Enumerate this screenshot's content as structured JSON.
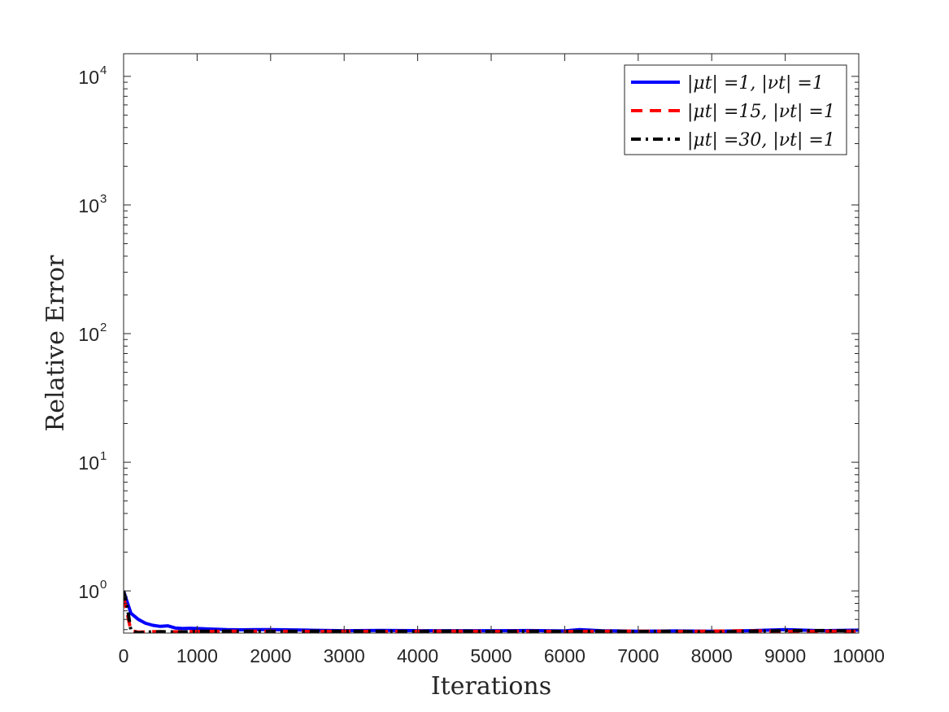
{
  "chart_data": {
    "type": "line",
    "xlabel": "Iterations",
    "ylabel": "Relative Error",
    "xlim": [
      0,
      10000
    ],
    "ylim": [
      0.47,
      15000
    ],
    "yscale": "log",
    "x_ticks": [
      "0",
      "1000",
      "2000",
      "3000",
      "4000",
      "5000",
      "6000",
      "7000",
      "8000",
      "9000",
      "10000"
    ],
    "y_ticks": [
      {
        "base": "10",
        "exp": "0",
        "value": 1
      },
      {
        "base": "10",
        "exp": "1",
        "value": 10
      },
      {
        "base": "10",
        "exp": "2",
        "value": 100
      },
      {
        "base": "10",
        "exp": "3",
        "value": 1000
      },
      {
        "base": "10",
        "exp": "4",
        "value": 10000
      }
    ],
    "grid": false,
    "legend_position": "top-right",
    "series": [
      {
        "name": "|μt| =1, |νt| =1",
        "color": "#0000ff",
        "dash": "solid",
        "x": [
          0,
          100,
          200,
          300,
          400,
          500,
          600,
          700,
          800,
          900,
          1000,
          1200,
          1400,
          1600,
          1800,
          2000,
          2500,
          3000,
          3500,
          4000,
          4500,
          5000,
          5500,
          6000,
          6200,
          6500,
          7000,
          7500,
          8000,
          8500,
          9000,
          9500,
          10000
        ],
        "y": [
          1.0,
          0.67,
          0.6,
          0.56,
          0.54,
          0.53,
          0.535,
          0.515,
          0.51,
          0.512,
          0.51,
          0.505,
          0.5,
          0.498,
          0.5,
          0.5,
          0.495,
          0.49,
          0.493,
          0.49,
          0.49,
          0.49,
          0.492,
          0.488,
          0.5,
          0.49,
          0.486,
          0.488,
          0.485,
          0.49,
          0.5,
          0.49,
          0.495
        ]
      },
      {
        "name": "|μt| =15, |νt| =1",
        "color": "#ff0000",
        "dash": "dashed",
        "x": [
          0,
          100,
          200,
          300,
          400,
          600,
          800,
          1000,
          1500,
          2000,
          2500,
          3000,
          3500,
          4000,
          4500,
          5000,
          5500,
          6000,
          6500,
          7000,
          7500,
          8000,
          8500,
          9000,
          9500,
          10000
        ],
        "y": [
          0.9,
          0.49,
          0.478,
          0.48,
          0.482,
          0.48,
          0.482,
          0.484,
          0.485,
          0.486,
          0.483,
          0.486,
          0.484,
          0.485,
          0.487,
          0.484,
          0.486,
          0.483,
          0.485,
          0.487,
          0.484,
          0.486,
          0.49,
          0.484,
          0.486,
          0.485
        ]
      },
      {
        "name": "|μt| =30, |νt| =1",
        "color": "#000000",
        "dash": "dashdot",
        "x": [
          0,
          50,
          100,
          200,
          300,
          500,
          800,
          1000,
          1500,
          2000,
          2500,
          3000,
          3500,
          4000,
          4500,
          5000,
          5500,
          6000,
          6500,
          7000,
          7500,
          8000,
          8500,
          9000,
          9500,
          10000
        ],
        "y": [
          1.0,
          0.75,
          0.49,
          0.472,
          0.478,
          0.482,
          0.48,
          0.485,
          0.486,
          0.484,
          0.487,
          0.485,
          0.486,
          0.484,
          0.488,
          0.483,
          0.486,
          0.484,
          0.487,
          0.483,
          0.485,
          0.478,
          0.486,
          0.49,
          0.492,
          0.488
        ]
      }
    ]
  }
}
